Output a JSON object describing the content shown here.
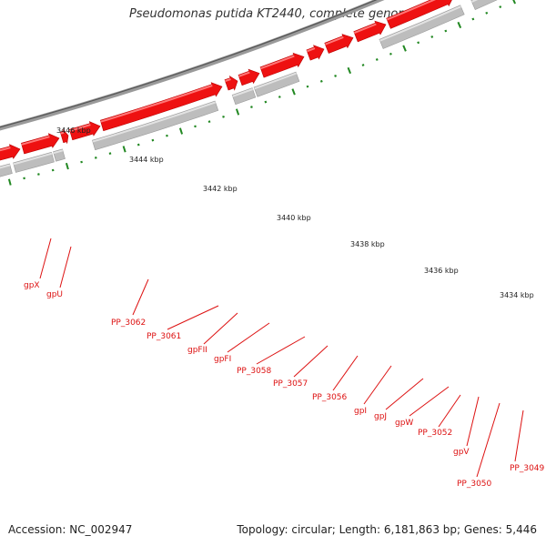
{
  "title": "Pseudomonas putida KT2440, complete genome",
  "footer": {
    "accession": "Accession: NC_002947",
    "info": "Topology: circular; Length: 6,181,863 bp; Genes: 5,446"
  },
  "colors": {
    "gene_red": "#ee1111",
    "gene_grey": "#bdbdbd",
    "backbone": "#808080",
    "tick_green": "#228822",
    "label_red": "#dd1111"
  },
  "scale_labels": [
    "3446 kbp",
    "3444 kbp",
    "3442 kbp",
    "3440 kbp",
    "3438 kbp",
    "3436 kbp",
    "3434 kbp"
  ],
  "gene_labels": [
    "gpX",
    "gpU",
    "PP_3062",
    "PP_3061",
    "gpFII",
    "gpFI",
    "PP_3058",
    "PP_3057",
    "PP_3056",
    "gpI",
    "gpJ",
    "gpW",
    "PP_3052",
    "gpV",
    "PP_3050",
    "PP_3049"
  ]
}
